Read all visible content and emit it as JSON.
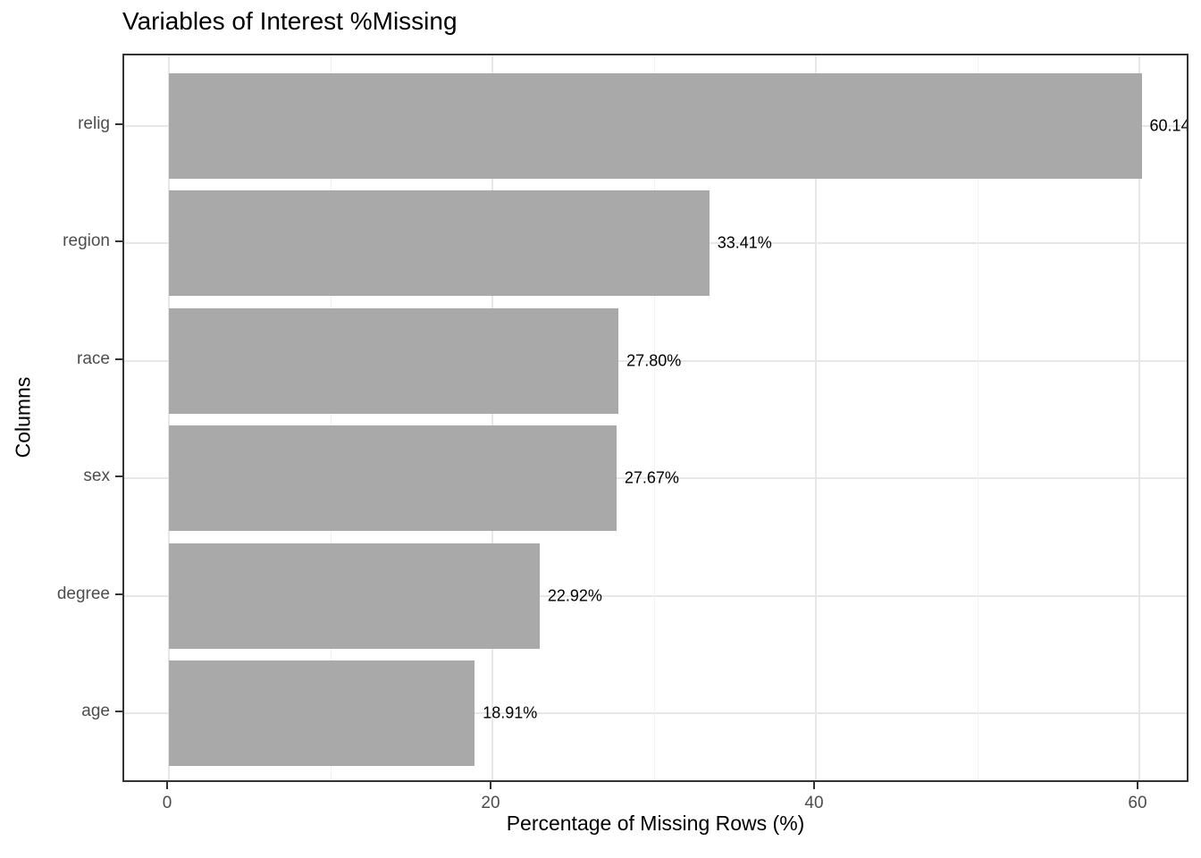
{
  "title": "Variables of Interest %Missing",
  "chart_data": {
    "type": "bar",
    "orientation": "horizontal",
    "title": "Variables of Interest %Missing",
    "xlabel": "Percentage of Missing Rows (%)",
    "ylabel": "Columns",
    "categories": [
      "relig",
      "region",
      "race",
      "sex",
      "degree",
      "age"
    ],
    "values": [
      60.14,
      33.41,
      27.8,
      27.67,
      22.92,
      18.91
    ],
    "bar_labels": [
      "60.14",
      "33.41%",
      "27.80%",
      "27.67%",
      "22.92%",
      "18.91%"
    ],
    "x_ticks": [
      0,
      20,
      40,
      60
    ],
    "x_tick_labels": [
      "0",
      "20",
      "40",
      "60"
    ],
    "x_minor_gridlines": [
      10,
      30,
      50
    ],
    "xlim": [
      -2.8,
      63.2
    ],
    "grid": true,
    "legend": false
  },
  "colors": {
    "bar_fill": "#a9a9a9",
    "axis_text": "#4d4d4d",
    "text": "#000000",
    "panel_border": "#333333",
    "grid_major": "#e7e7e7",
    "grid_minor": "#f2f2f2",
    "tick": "#333333",
    "background": "#ffffff"
  }
}
